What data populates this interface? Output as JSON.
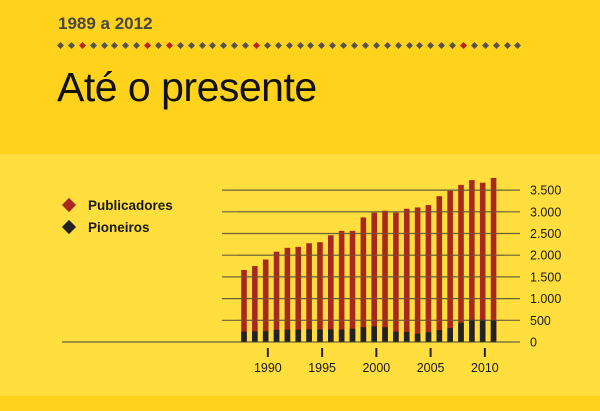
{
  "header": {
    "subtitle": "1989 a 2012",
    "title": "Até o presente",
    "dot_colors": [
      "#5b5248",
      "#5b5248",
      "#b8261c",
      "#5b5248",
      "#5b5248",
      "#5b5248",
      "#5b5248",
      "#5b5248",
      "#b8261c",
      "#5b5248",
      "#b8261c",
      "#5b5248",
      "#5b5248",
      "#5b5248",
      "#5b5248",
      "#5b5248",
      "#5b5248",
      "#5b5248",
      "#b8261c",
      "#5b5248",
      "#5b5248",
      "#5b5248",
      "#5b5248",
      "#5b5248",
      "#5b5248",
      "#5b5248",
      "#5b5248",
      "#5b5248",
      "#5b5248",
      "#5b5248",
      "#5b5248",
      "#5b5248",
      "#5b5248",
      "#5b5248",
      "#5b5248",
      "#5b5248",
      "#5b5248",
      "#b8261c",
      "#5b5248",
      "#5b5248",
      "#5b5248",
      "#5b5248",
      "#5b5248"
    ]
  },
  "legend": [
    {
      "label": "Publicadores",
      "color": "#a8291c"
    },
    {
      "label": "Pioneiros",
      "color": "#222222"
    }
  ],
  "colors": {
    "publishers": "#a8291c",
    "pioneers": "#222222",
    "gridline": "#6b6238",
    "axis_text": "#1a1a1a"
  },
  "chart_data": {
    "type": "bar",
    "title": "Até o presente",
    "subtitle": "1989 a 2012",
    "categories": [
      1989,
      1990,
      1991,
      1992,
      1993,
      1994,
      1995,
      1996,
      1997,
      1998,
      1999,
      2000,
      2001,
      2002,
      2003,
      2004,
      2005,
      2006,
      2007,
      2008,
      2009,
      2010,
      2011,
      2012
    ],
    "series": [
      {
        "name": "Publicadores",
        "values": [
          1660,
          1750,
          1900,
          2080,
          2170,
          2190,
          2275,
          2300,
          2460,
          2560,
          2560,
          2870,
          2980,
          3025,
          2980,
          3070,
          3100,
          3155,
          3360,
          3485,
          3620,
          3730,
          3670,
          3780
        ]
      },
      {
        "name": "Pioneiros",
        "values": [
          240,
          245,
          250,
          280,
          285,
          285,
          290,
          290,
          290,
          285,
          305,
          340,
          360,
          340,
          240,
          230,
          190,
          225,
          275,
          320,
          445,
          515,
          515,
          505
        ]
      }
    ],
    "overlay": true,
    "xlabel": "",
    "ylabel": "",
    "ylim": [
      0,
      3800
    ],
    "y_ticks": [
      "0",
      "500",
      "1.000",
      "1.500",
      "2.000",
      "2.500",
      "3.000",
      "3.500"
    ],
    "x_ticks": [
      "1990",
      "1995",
      "2000",
      "2005",
      "2010"
    ],
    "grid": true,
    "legend_position": "top-left",
    "y_axis_position": "right"
  }
}
